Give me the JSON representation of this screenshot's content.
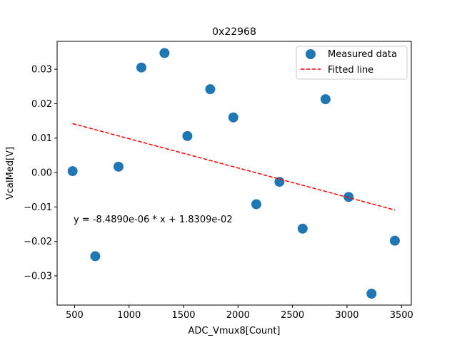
{
  "chart_data": {
    "type": "scatter",
    "title": "0x22968",
    "xlabel": "ADC_Vmux8[Count]",
    "ylabel": "VcalMed[V]",
    "xlim": [
      340,
      3590
    ],
    "ylim": [
      -0.0385,
      0.0381
    ],
    "xticks": [
      500,
      1000,
      1500,
      2000,
      2500,
      3000,
      3500
    ],
    "xtick_labels": [
      "500",
      "1000",
      "1500",
      "2000",
      "2500",
      "3000",
      "3500"
    ],
    "yticks": [
      -0.03,
      -0.02,
      -0.01,
      0.0,
      0.01,
      0.02,
      0.03
    ],
    "ytick_labels": [
      "−0.03",
      "−0.02",
      "−0.01",
      "0.00",
      "0.01",
      "0.02",
      "0.03"
    ],
    "grid": false,
    "legend_position": "top-right",
    "series": [
      {
        "name": "Measured data",
        "kind": "scatter",
        "color": "#1f77b4",
        "x": [
          482,
          690,
          903,
          1113,
          1325,
          1745,
          1957,
          1535,
          2168,
          2380,
          2593,
          2803,
          3015,
          3225,
          3439
        ],
        "y": [
          0.0004,
          -0.0243,
          0.0017,
          0.0305,
          0.0347,
          0.0242,
          0.016,
          0.0106,
          -0.0092,
          -0.0027,
          -0.0163,
          0.0213,
          -0.0071,
          -0.0352,
          -0.0198
        ]
      },
      {
        "name": "Fitted line",
        "kind": "line",
        "color": "#ff0000",
        "dashed": true,
        "x": [
          482,
          3439
        ],
        "y": [
          0.014217,
          -0.010884
        ]
      }
    ],
    "annotations": [
      {
        "text": "y = -8.4890e-06 * x + 1.8309e-02",
        "x": 482,
        "y": -0.0146
      }
    ]
  }
}
